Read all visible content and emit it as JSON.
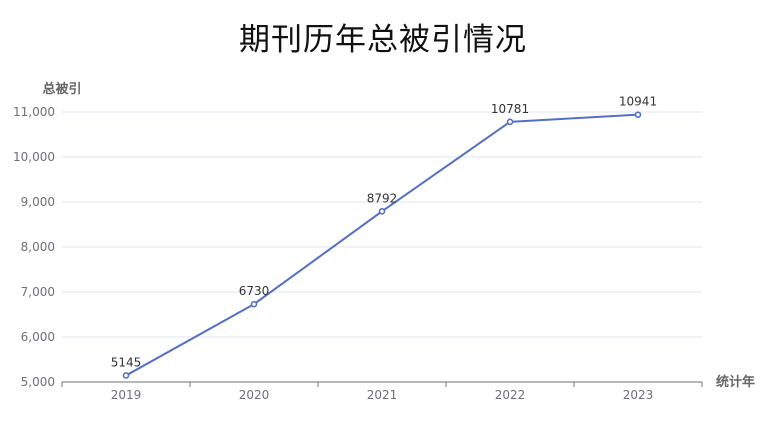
{
  "chart_data": {
    "type": "line",
    "title": "期刊历年总被引情况",
    "xlabel": "统计年",
    "ylabel": "总被引",
    "categories": [
      "2019",
      "2020",
      "2021",
      "2022",
      "2023"
    ],
    "series": [
      {
        "values": [
          5145,
          6730,
          8792,
          10781,
          10941
        ]
      }
    ],
    "ylim": [
      5000,
      11000
    ],
    "yticks": [
      5000,
      6000,
      7000,
      8000,
      9000,
      10000,
      11000
    ],
    "ytick_labels": [
      "5,000",
      "6,000",
      "7,000",
      "8,000",
      "9,000",
      "10,000",
      "11,000"
    ],
    "grid": true,
    "data_labels": true,
    "color": "#5470c6"
  }
}
